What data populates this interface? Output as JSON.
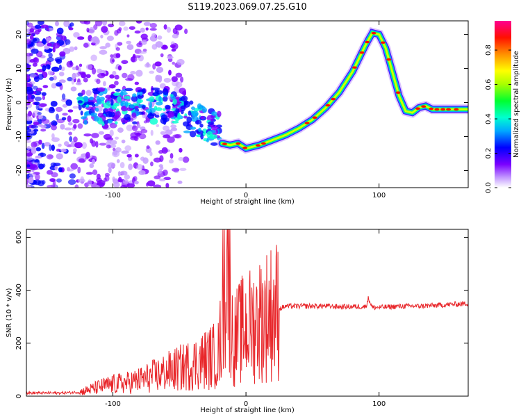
{
  "title": "S119.2023.069.07.25.G10",
  "chart_data": [
    {
      "type": "heatmap",
      "xlabel": "Height of straight line (km)",
      "ylabel": "Frequency (Hz)",
      "xlim": [
        -165,
        167
      ],
      "ylim": [
        -25,
        24
      ],
      "xticks": [
        -100,
        0,
        100
      ],
      "yticks": [
        -20,
        -10,
        0,
        10,
        20
      ],
      "colorbar": {
        "label": "Normalized spectral amplitude",
        "range": [
          0,
          0.97
        ],
        "ticks": [
          0.0,
          0.2,
          0.4,
          0.6,
          0.8
        ],
        "colormap": [
          "#ffffff",
          "#7a00ff",
          "#0000ff",
          "#00c8ff",
          "#00ff40",
          "#c8ff00",
          "#ffff00",
          "#ff8000",
          "#ff0000",
          "#ff0080"
        ]
      },
      "ridge": {
        "description_free": true,
        "x": [
          -18,
          -12,
          -6,
          0,
          10,
          20,
          30,
          40,
          50,
          60,
          70,
          80,
          90,
          95,
          100,
          105,
          110,
          115,
          120,
          125,
          130,
          135,
          140,
          150,
          160,
          167
        ],
        "y": [
          -12,
          -12.5,
          -12,
          -13.5,
          -12.5,
          -11,
          -9.5,
          -7.5,
          -5,
          -1.5,
          3,
          9,
          17,
          20.5,
          20,
          16,
          9,
          2,
          -2.5,
          -3,
          -1.5,
          -1,
          -2,
          -2,
          -2,
          -2
        ]
      }
    },
    {
      "type": "line",
      "xlabel": "Height of straight line (km)",
      "ylabel": "SNR (10 * v/v)",
      "xlim": [
        -165,
        167
      ],
      "ylim": [
        0,
        630
      ],
      "xticks": [
        -100,
        0,
        100
      ],
      "yticks": [
        0,
        200,
        400,
        600
      ],
      "color": "#e8262a",
      "series": [
        {
          "x": [
            -165,
            -140,
            -125,
            -110,
            -100,
            -90,
            -80,
            -70,
            -60,
            -50,
            -40,
            -30,
            -20,
            -14,
            -10,
            -5,
            0,
            5,
            10,
            15,
            20,
            25,
            30,
            40,
            50,
            60,
            70,
            80,
            90,
            92,
            95,
            100,
            110,
            120,
            130,
            140,
            150,
            160,
            167
          ],
          "y": [
            12,
            12,
            15,
            35,
            45,
            50,
            60,
            75,
            90,
            105,
            120,
            140,
            160,
            630,
            200,
            240,
            260,
            270,
            290,
            305,
            320,
            330,
            340,
            340,
            340,
            340,
            338,
            338,
            338,
            370,
            335,
            335,
            338,
            340,
            340,
            342,
            345,
            348,
            350
          ]
        }
      ]
    }
  ]
}
